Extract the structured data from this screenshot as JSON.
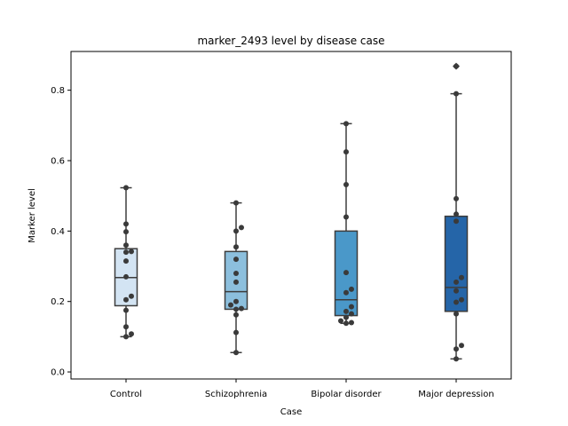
{
  "chart_data": {
    "type": "box",
    "title": "marker_2493 level by disease case",
    "xlabel": "Case",
    "ylabel": "Marker level",
    "ylim": [
      -0.02,
      0.91
    ],
    "yticks": [
      0.0,
      0.2,
      0.4,
      0.6,
      0.8
    ],
    "ytick_labels": [
      "0.0",
      "0.2",
      "0.4",
      "0.6",
      "0.8"
    ],
    "grid": false,
    "categories": [
      "Control",
      "Schizophrenia",
      "Bipolar disorder",
      "Major depression"
    ],
    "colors": [
      "#d3e4f3",
      "#8cbfdd",
      "#4a98c9",
      "#2565a8"
    ],
    "boxes": [
      {
        "q1": 0.188,
        "median": 0.268,
        "q3": 0.35,
        "whisker_low": 0.1,
        "whisker_high": 0.523,
        "outliers": []
      },
      {
        "q1": 0.178,
        "median": 0.228,
        "q3": 0.342,
        "whisker_low": 0.055,
        "whisker_high": 0.48,
        "outliers": []
      },
      {
        "q1": 0.16,
        "median": 0.205,
        "q3": 0.4,
        "whisker_low": 0.138,
        "whisker_high": 0.705,
        "outliers": []
      },
      {
        "q1": 0.172,
        "median": 0.24,
        "q3": 0.442,
        "whisker_low": 0.037,
        "whisker_high": 0.79,
        "outliers": [
          0.868
        ]
      }
    ],
    "points": [
      [
        0.523,
        0.42,
        0.398,
        0.36,
        0.342,
        0.34,
        0.315,
        0.27,
        0.215,
        0.205,
        0.175,
        0.128,
        0.108,
        0.1
      ],
      [
        0.48,
        0.41,
        0.4,
        0.355,
        0.32,
        0.28,
        0.255,
        0.2,
        0.19,
        0.18,
        0.178,
        0.162,
        0.112,
        0.055
      ],
      [
        0.705,
        0.625,
        0.532,
        0.44,
        0.282,
        0.235,
        0.225,
        0.185,
        0.172,
        0.165,
        0.155,
        0.145,
        0.14,
        0.138
      ],
      [
        0.868,
        0.79,
        0.492,
        0.448,
        0.428,
        0.268,
        0.255,
        0.23,
        0.205,
        0.198,
        0.165,
        0.075,
        0.065,
        0.037
      ]
    ]
  }
}
